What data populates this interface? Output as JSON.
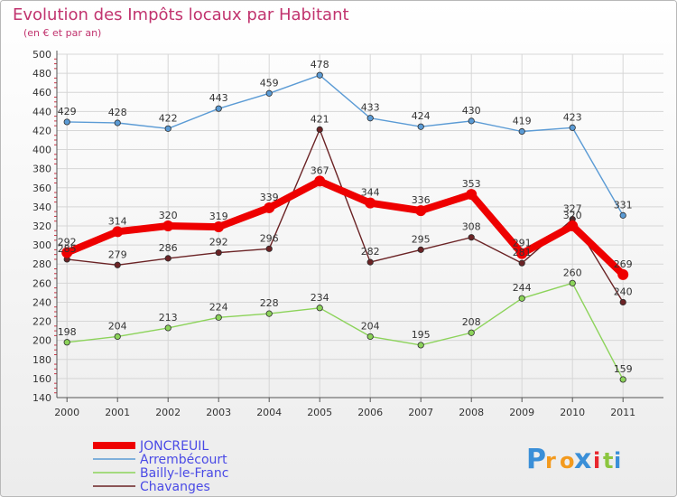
{
  "chart_data": {
    "type": "line",
    "title": "Evolution des Impôts locaux par Habitant",
    "subtitle": "(en € et par an)",
    "xlabel": "",
    "ylabel": "",
    "ylim": [
      140,
      500
    ],
    "yticks": [
      140,
      160,
      180,
      200,
      220,
      240,
      260,
      280,
      300,
      320,
      340,
      360,
      380,
      400,
      420,
      440,
      460,
      480,
      500
    ],
    "categories": [
      "2000",
      "2001",
      "2002",
      "2003",
      "2004",
      "2005",
      "2006",
      "2007",
      "2008",
      "2009",
      "2010",
      "2011"
    ],
    "grid": true,
    "legend_position": "bottom-left",
    "series": [
      {
        "name": "Arrembécourt",
        "color": "#5b9bd5",
        "values": [
          429,
          428,
          422,
          443,
          459,
          478,
          433,
          424,
          430,
          419,
          423,
          331
        ]
      },
      {
        "name": "Bailly-le-Franc",
        "color": "#8cd35a",
        "values": [
          198,
          204,
          213,
          224,
          228,
          234,
          204,
          195,
          208,
          244,
          260,
          159
        ]
      },
      {
        "name": "Chavanges",
        "color": "#6b2325",
        "values": [
          285,
          279,
          286,
          292,
          296,
          421,
          282,
          295,
          308,
          281,
          327,
          240
        ]
      },
      {
        "name": "JONCREUIL",
        "color": "#ee0000",
        "values": [
          292,
          314,
          320,
          319,
          339,
          367,
          344,
          336,
          353,
          291,
          320,
          269
        ]
      }
    ],
    "legend_order": [
      "JONCREUIL",
      "Arrembécourt",
      "Bailly-le-Franc",
      "Chavanges"
    ]
  },
  "brand": {
    "letters": [
      "P",
      "r",
      "o",
      "x",
      "i",
      "t",
      "i"
    ],
    "colors": [
      "#3a8fd8",
      "#f39a1e",
      "#f39a1e",
      "#3a8fd8",
      "#e8262d",
      "#8cc63f",
      "#3a8fd8"
    ]
  },
  "colors": {
    "title": "#c1336e",
    "axis_text": "#333333",
    "legend_text": "#4a4ae6",
    "background_top": "#ffffff",
    "background_bottom": "#ececec"
  }
}
